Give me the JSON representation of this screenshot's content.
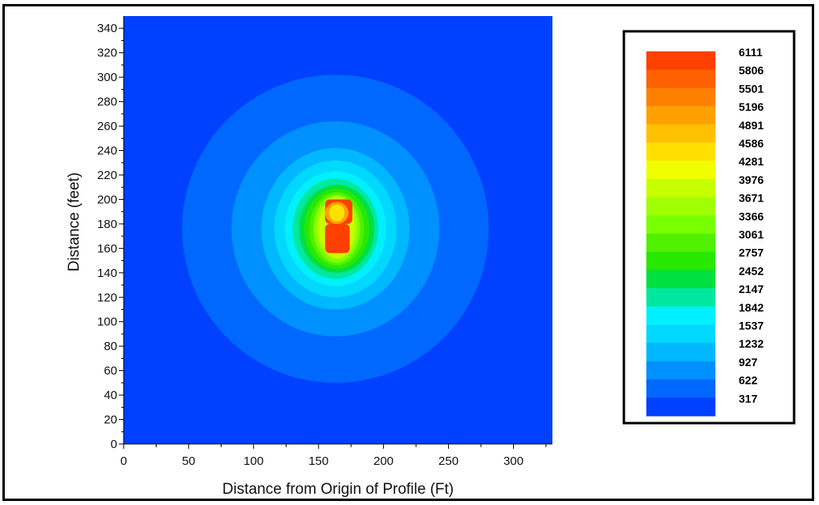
{
  "chart_data": {
    "type": "heatmap",
    "subtype": "contour",
    "title": "",
    "xlabel": "Distance from Origin of Profile (Ft)",
    "ylabel": "Distance (feet)",
    "xlim": [
      0,
      330
    ],
    "ylim": [
      0,
      350
    ],
    "x_ticks": [
      0,
      50,
      100,
      150,
      200,
      250,
      300
    ],
    "y_ticks": [
      0,
      20,
      40,
      60,
      80,
      100,
      120,
      140,
      160,
      180,
      200,
      220,
      240,
      260,
      280,
      300,
      320,
      340
    ],
    "background_level": 317,
    "colorscale": {
      "levels": [
        6111,
        5806,
        5501,
        5196,
        4891,
        4586,
        4281,
        3976,
        3671,
        3366,
        3061,
        2757,
        2452,
        2147,
        1842,
        1537,
        1232,
        927,
        622,
        317
      ],
      "colors": [
        "#ff4000",
        "#ff6000",
        "#ff8000",
        "#ffa000",
        "#ffc000",
        "#ffe000",
        "#f0ff00",
        "#c8ff00",
        "#a0ff00",
        "#78ff00",
        "#50f000",
        "#28e800",
        "#00e040",
        "#00e8a0",
        "#00f0ff",
        "#00d8ff",
        "#00b8ff",
        "#0090ff",
        "#0068ff",
        "#0040ff"
      ]
    },
    "contours": [
      {
        "level": 622,
        "cx": 163,
        "cy": 176,
        "rx": 118,
        "ry": 126
      },
      {
        "level": 927,
        "cx": 163,
        "cy": 176,
        "rx": 80,
        "ry": 88
      },
      {
        "level": 1232,
        "cx": 163,
        "cy": 176,
        "rx": 57,
        "ry": 66
      },
      {
        "level": 1537,
        "cx": 163,
        "cy": 176,
        "rx": 47,
        "ry": 56
      },
      {
        "level": 1842,
        "cx": 163,
        "cy": 176,
        "rx": 39,
        "ry": 47
      },
      {
        "level": 2147,
        "cx": 163,
        "cy": 176,
        "rx": 33,
        "ry": 41
      },
      {
        "level": 2452,
        "cx": 164,
        "cy": 176,
        "rx": 29,
        "ry": 36
      },
      {
        "level": 2757,
        "cx": 164,
        "cy": 176,
        "rx": 25,
        "ry": 33
      },
      {
        "level": 3061,
        "cx": 164,
        "cy": 176,
        "rx": 21,
        "ry": 30
      },
      {
        "level": 3366,
        "cx": 164,
        "cy": 176,
        "rx": 18,
        "ry": 28
      },
      {
        "level": 3671,
        "cx": 164,
        "cy": 177,
        "rx": 16,
        "ry": 26
      },
      {
        "level": 3976,
        "cx": 164,
        "cy": 177,
        "rx": 14,
        "ry": 25
      }
    ],
    "hotspot": {
      "upper_block": {
        "x0": 155,
        "x1": 176,
        "y0": 180,
        "y1": 200,
        "level": 6111
      },
      "upper_core": {
        "cx": 164,
        "cy": 189,
        "rx": 6,
        "ry": 7,
        "level": 4586
      },
      "upper_inner": {
        "cx": 164,
        "cy": 189,
        "rx": 9,
        "ry": 9,
        "level": 5196
      },
      "lower_block": {
        "x0": 155,
        "x1": 174,
        "y0": 156,
        "y1": 180,
        "level": 6111
      }
    },
    "legend": {
      "placement": "right"
    }
  }
}
